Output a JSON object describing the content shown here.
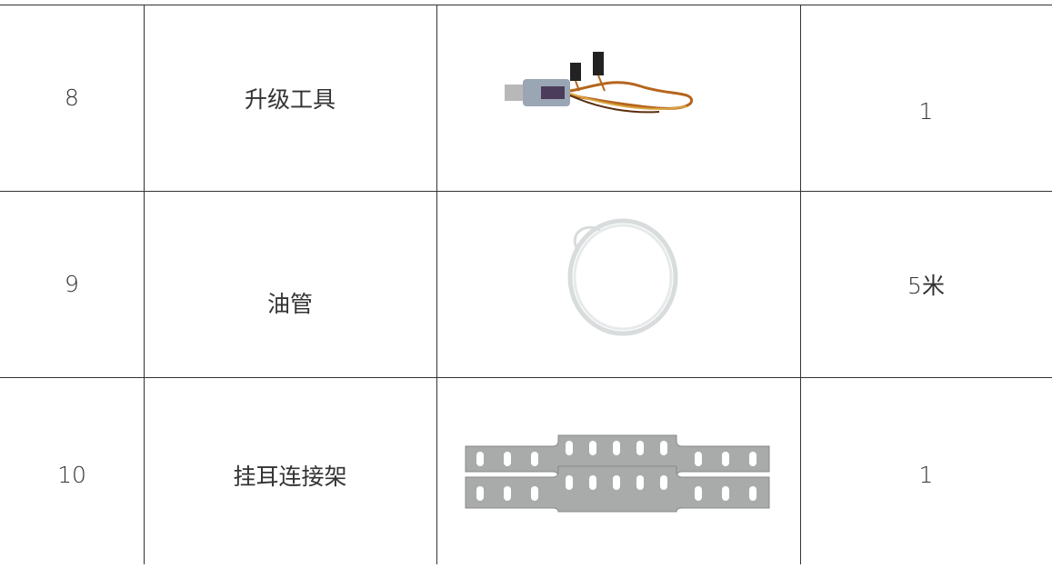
{
  "table": {
    "rows": [
      [
        "8",
        "升级工具",
        "1"
      ],
      [
        "9",
        "油管",
        "5米"
      ],
      [
        "10",
        "挂耳连接架",
        "1"
      ]
    ]
  }
}
